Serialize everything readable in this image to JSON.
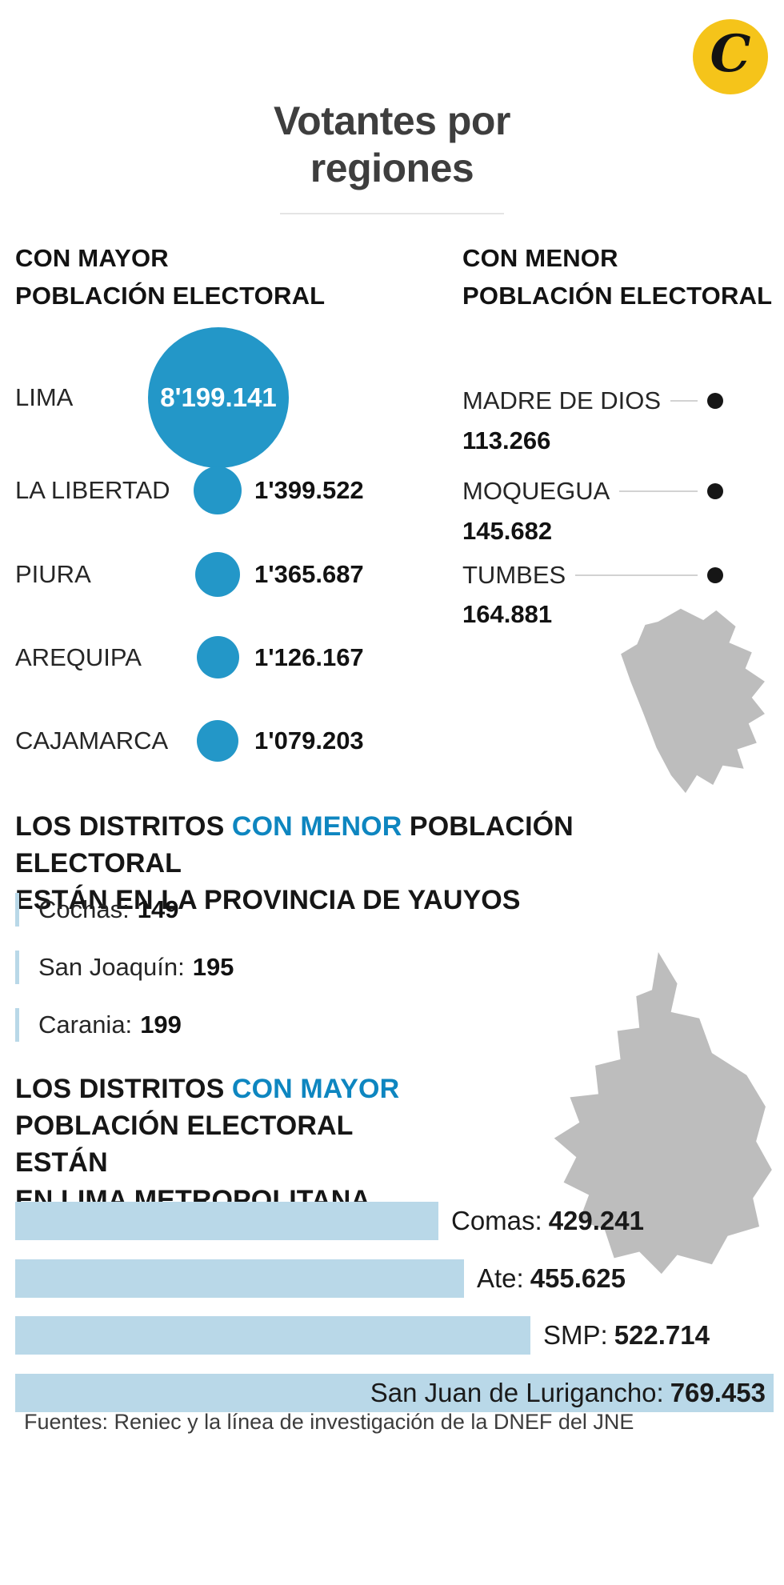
{
  "brand": {
    "logo_letter": "C"
  },
  "title": {
    "line1": "Votantes por",
    "line2": "regiones"
  },
  "colors": {
    "accent_blue": "#0e86c0",
    "bubble_blue": "#2397c8",
    "bar_blue": "#b9d8e8",
    "dot_black": "#161616",
    "map_gray": "#bdbdbd",
    "logo_yellow": "#f5c41a"
  },
  "sections": {
    "mayor": {
      "header_line1": "CON MAYOR",
      "header_line2": "POBLACIÓN ELECTORAL",
      "regions": [
        {
          "name": "LIMA",
          "value": "8'199.141",
          "population": 8199141
        },
        {
          "name": "LA LIBERTAD",
          "value": "1'399.522",
          "population": 1399522
        },
        {
          "name": "PIURA",
          "value": "1'365.687",
          "population": 1365687
        },
        {
          "name": "AREQUIPA",
          "value": "1'126.167",
          "population": 1126167
        },
        {
          "name": "CAJAMARCA",
          "value": "1'079.203",
          "population": 1079203
        }
      ]
    },
    "menor": {
      "header_line1": "CON MENOR",
      "header_line2": "POBLACIÓN ELECTORAL",
      "regions": [
        {
          "name": "MADRE DE DIOS",
          "value": "113.266",
          "population": 113266
        },
        {
          "name": "MOQUEGUA",
          "value": "145.682",
          "population": 145682
        },
        {
          "name": "TUMBES",
          "value": "164.881",
          "population": 164881
        }
      ]
    },
    "yauyos": {
      "heading_line1_prefix": "LOS DISTRITOS ",
      "heading_line1_accent": "CON MENOR",
      "heading_line1_suffix": " POBLACIÓN ELECTORAL",
      "heading_line2": "ESTÁN EN LA PROVINCIA DE YAUYOS",
      "districts": [
        {
          "name": "Cochas:",
          "value": "149",
          "population": 149
        },
        {
          "name": "San Joaquín:",
          "value": "195",
          "population": 195
        },
        {
          "name": "Carania:",
          "value": "199",
          "population": 199
        }
      ]
    },
    "lima_metropolitana": {
      "heading_line1_prefix": "LOS DISTRITOS ",
      "heading_line1_accent": "CON MAYOR",
      "heading_line2": "POBLACIÓN ELECTORAL ESTÁN",
      "heading_line3": "EN LIMA METROPOLITANA",
      "districts": [
        {
          "name": "Comas:",
          "value": "429.241",
          "population": 429241
        },
        {
          "name": "Ate:",
          "value": "455.625",
          "population": 455625
        },
        {
          "name": "SMP:",
          "value": "522.714",
          "population": 522714
        },
        {
          "name": "San Juan de Lurigancho:",
          "value": "769.453",
          "population": 769453
        }
      ]
    }
  },
  "footer": {
    "source": "Fuentes: Reniec y la línea de investigación de la DNEF del JNE"
  },
  "chart_data": [
    {
      "type": "scatter",
      "subtype": "proportional-bubbles",
      "title": "CON MAYOR POBLACIÓN ELECTORAL",
      "categories": [
        "LIMA",
        "LA LIBERTAD",
        "PIURA",
        "AREQUIPA",
        "CAJAMARCA"
      ],
      "values": [
        8199141,
        1399522,
        1365687,
        1126167,
        1079203
      ],
      "value_labels": [
        "8'199.141",
        "1'399.522",
        "1'365.687",
        "1'126.167",
        "1'079.203"
      ],
      "marker_color": "#2397c8"
    },
    {
      "type": "scatter",
      "subtype": "dot-list",
      "title": "CON MENOR POBLACIÓN ELECTORAL",
      "categories": [
        "MADRE DE DIOS",
        "MOQUEGUA",
        "TUMBES"
      ],
      "values": [
        113266,
        145682,
        164881
      ],
      "value_labels": [
        "113.266",
        "145.682",
        "164.881"
      ],
      "marker_color": "#161616"
    },
    {
      "type": "bar",
      "subtype": "mini-ticks",
      "title": "LOS DISTRITOS CON MENOR POBLACIÓN ELECTORAL ESTÁN EN LA PROVINCIA DE YAUYOS",
      "categories": [
        "Cochas",
        "San Joaquín",
        "Carania"
      ],
      "values": [
        149,
        195,
        199
      ]
    },
    {
      "type": "bar",
      "orientation": "horizontal",
      "title": "LOS DISTRITOS CON MAYOR POBLACIÓN ELECTORAL ESTÁN EN LIMA METROPOLITANA",
      "categories": [
        "Comas",
        "Ate",
        "SMP",
        "San Juan de Lurigancho"
      ],
      "values": [
        429241,
        455625,
        522714,
        769453
      ],
      "value_labels": [
        "429.241",
        "455.625",
        "522.714",
        "769.453"
      ],
      "bar_color": "#b9d8e8",
      "xlim": [
        0,
        769453
      ]
    }
  ]
}
